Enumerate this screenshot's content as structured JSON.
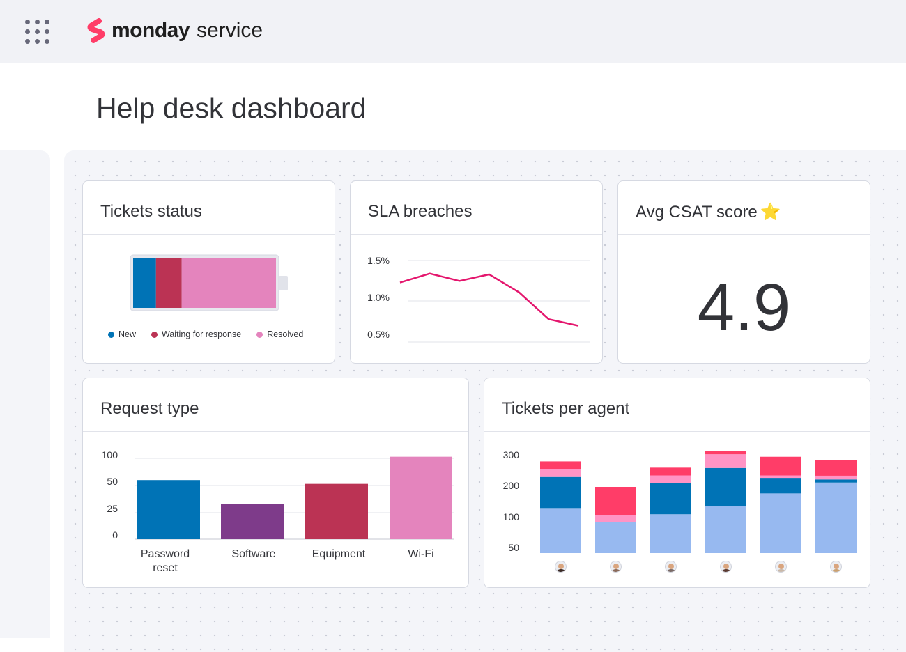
{
  "app": {
    "brand": "monday",
    "product": "service"
  },
  "page": {
    "title": "Help desk dashboard"
  },
  "colors": {
    "blue": "#0073b6",
    "crimson": "#bb3354",
    "pink": "#e484bd",
    "purple": "#7e3b8a",
    "red": "#ff3d68",
    "light_pink": "#ff94c5",
    "light_blue": "#97b9f0",
    "line": "#e4166d"
  },
  "tickets_status": {
    "title": "Tickets status",
    "legend": [
      "New",
      "Waiting for response",
      "Resolved"
    ],
    "chart_data": {
      "type": "bar",
      "stacked": true,
      "categories": [
        "New",
        "Waiting for response",
        "Resolved"
      ],
      "values": [
        16,
        18,
        66
      ]
    }
  },
  "sla_breaches": {
    "title": "SLA breaches",
    "chart_data": {
      "type": "line",
      "y_ticks": [
        "1.5%",
        "1.0%",
        "0.5%"
      ],
      "ylim": [
        0.5,
        1.5
      ],
      "values": [
        1.23,
        1.34,
        1.25,
        1.33,
        1.11,
        0.78,
        0.7
      ]
    }
  },
  "csat": {
    "title": "Avg CSAT score",
    "star": "⭐",
    "value": "4.9"
  },
  "request_type": {
    "title": "Request type",
    "chart_data": {
      "type": "bar",
      "y_ticks": [
        "100",
        "50",
        "25",
        "0"
      ],
      "categories": [
        [
          "Password",
          "reset"
        ],
        [
          "Software"
        ],
        [
          "Equipment"
        ],
        [
          "Wi-Fi"
        ]
      ],
      "values": [
        60,
        33,
        53,
        103
      ]
    }
  },
  "tickets_per_agent": {
    "title": "Tickets per agent",
    "chart_data": {
      "type": "bar",
      "stacked": true,
      "y_ticks": [
        "300",
        "200",
        "100",
        "50"
      ],
      "ylim": [
        0,
        320
      ],
      "agents": [
        "agent-1",
        "agent-2",
        "agent-3",
        "agent-4",
        "agent-5",
        "agent-6"
      ],
      "series": [
        {
          "name": "base",
          "values": [
            145,
            100,
            125,
            152,
            192,
            227
          ]
        },
        {
          "name": "blue",
          "values": [
            100,
            0,
            100,
            122,
            50,
            10
          ]
        },
        {
          "name": "light-pink",
          "values": [
            25,
            23,
            25,
            44,
            8,
            12
          ]
        },
        {
          "name": "red",
          "values": [
            25,
            90,
            25,
            10,
            60,
            50
          ]
        }
      ]
    }
  }
}
